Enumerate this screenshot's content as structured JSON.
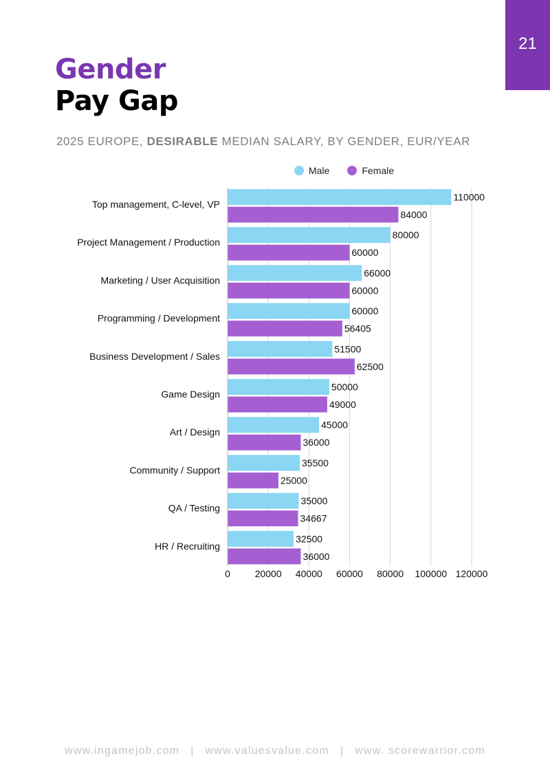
{
  "page": {
    "number": "21"
  },
  "header": {
    "title_line1": "Gender",
    "title_line2": "Pay Gap",
    "subtitle_pre": "2025 EUROPE, ",
    "subtitle_bold": "DESIRABLE",
    "subtitle_post": " MEDIAN SALARY, BY GENDER, EUR/YEAR"
  },
  "colors": {
    "accent": "#7b36b0",
    "male": "#8ad6f3",
    "female": "#a65fd3"
  },
  "chart_data": {
    "type": "bar",
    "orientation": "horizontal",
    "title": "2025 EUROPE, DESIRABLE MEDIAN SALARY, BY GENDER, EUR/YEAR",
    "categories": [
      "Top management, C-level, VP",
      "Project Management / Production",
      "Marketing / User Acquisition",
      "Programming / Development",
      "Business Development / Sales",
      "Game Design",
      "Art / Design",
      "Community / Support",
      "QA / Testing",
      "HR / Recruiting"
    ],
    "series": [
      {
        "name": "Male",
        "color": "#8ad6f3",
        "values": [
          110000,
          80000,
          66000,
          60000,
          51500,
          50000,
          45000,
          35500,
          35000,
          32500
        ]
      },
      {
        "name": "Female",
        "color": "#a65fd3",
        "values": [
          84000,
          60000,
          60000,
          56405,
          62500,
          49000,
          36000,
          25000,
          34667,
          36000
        ]
      }
    ],
    "xlim": [
      0,
      120000
    ],
    "xticks": [
      0,
      20000,
      40000,
      60000,
      80000,
      100000,
      120000
    ],
    "xlabel": "",
    "ylabel": "",
    "grid": true,
    "legend_position": "top"
  },
  "footer": {
    "links": [
      "www.ingamejob.com",
      "www.valuesvalue.com",
      "www. scorewarrior.com"
    ],
    "separator": "|"
  }
}
